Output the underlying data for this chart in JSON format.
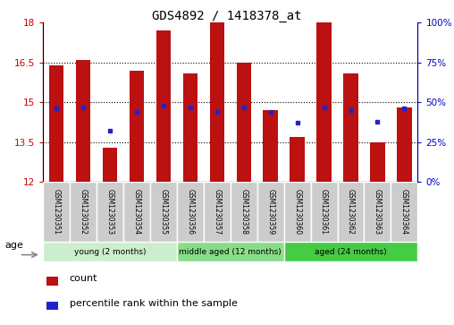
{
  "title": "GDS4892 / 1418378_at",
  "samples": [
    "GSM1230351",
    "GSM1230352",
    "GSM1230353",
    "GSM1230354",
    "GSM1230355",
    "GSM1230356",
    "GSM1230357",
    "GSM1230358",
    "GSM1230359",
    "GSM1230360",
    "GSM1230361",
    "GSM1230362",
    "GSM1230363",
    "GSM1230364"
  ],
  "bar_values": [
    16.4,
    16.6,
    13.3,
    16.2,
    17.7,
    16.1,
    18.0,
    16.5,
    14.7,
    13.7,
    18.0,
    16.1,
    13.5,
    14.8
  ],
  "percentile_values": [
    46,
    47,
    32,
    44,
    48,
    47,
    44,
    47,
    44,
    37,
    47,
    45,
    38,
    46
  ],
  "bar_color": "#bb1111",
  "percentile_color": "#2222cc",
  "y_min": 12,
  "y_max": 18,
  "y_ticks": [
    12,
    13.5,
    15,
    16.5,
    18
  ],
  "right_y_ticks": [
    0,
    25,
    50,
    75,
    100
  ],
  "right_y_labels": [
    "0%",
    "25%",
    "50%",
    "75%",
    "100%"
  ],
  "group_labels": [
    "young (2 months)",
    "middle aged (12 months)",
    "aged (24 months)"
  ],
  "group_ranges": [
    [
      0,
      4
    ],
    [
      5,
      8
    ],
    [
      9,
      13
    ]
  ],
  "group_colors": [
    "#cceecc",
    "#88dd88",
    "#44cc44"
  ],
  "tick_bg_color": "#cccccc",
  "background_color": "#ffffff",
  "bar_width": 0.55,
  "age_label": "age"
}
